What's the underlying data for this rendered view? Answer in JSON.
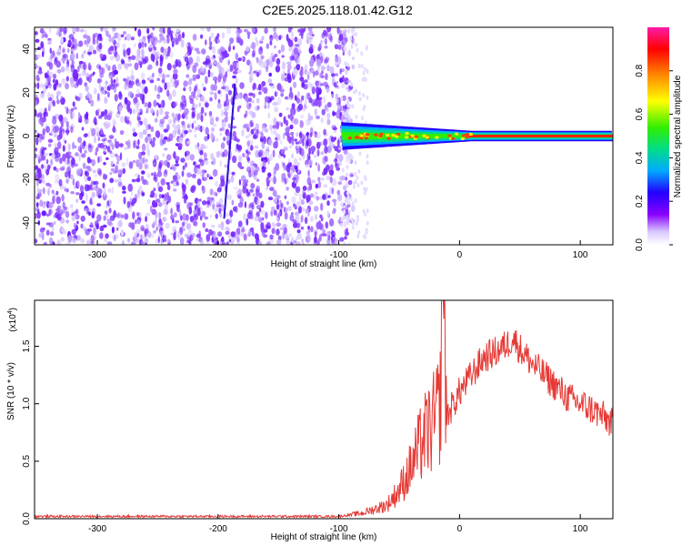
{
  "title": "C2E5.2025.118.01.42.G12",
  "colors": {
    "spectrogram_noise": "#6a1bff",
    "snr_line": "#e53935",
    "axis": "#000000",
    "colormap": [
      "#ff1aa8",
      "#ff0000",
      "#ff8800",
      "#ffff00",
      "#33ee00",
      "#00dd88",
      "#00aaff",
      "#2200ff",
      "#8800ff",
      "#d8c8ff",
      "#ffffff"
    ]
  },
  "chart_data": [
    {
      "type": "heatmap",
      "title": "C2E5.2025.118.01.42.G12",
      "xlabel": "Height of straight line (km)",
      "ylabel": "Frequency (Hz)",
      "xlim": [
        -352,
        127
      ],
      "ylim": [
        -50,
        50
      ],
      "xticks": [
        "-300",
        "-200",
        "-100",
        "0",
        "100"
      ],
      "yticks": [
        "-40",
        "-20",
        "0",
        "20",
        "40"
      ],
      "colorbar": {
        "label": "Normalized spectral amplitude",
        "range": [
          0.0,
          1.0
        ],
        "ticks": [
          "0.0",
          "0.2",
          "0.4",
          "0.6",
          "0.8"
        ]
      },
      "features": [
        {
          "description": "broadband noise",
          "x_range": [
            -352,
            -98
          ],
          "f_range": [
            -50,
            50
          ]
        },
        {
          "description": "signal trace",
          "x_range": [
            -98,
            127
          ],
          "f_center": 0,
          "f_halfwidth_start": 4,
          "f_halfwidth_end": 1.5
        }
      ]
    },
    {
      "type": "line",
      "xlabel": "Height of straight line (km)",
      "ylabel": "SNR (10 * v/v)",
      "yscale_label": "(x10",
      "yscale_exponent": "4",
      "xlim": [
        -352,
        127
      ],
      "ylim": [
        0,
        1.9
      ],
      "xticks": [
        "-300",
        "-200",
        "-100",
        "0",
        "100"
      ],
      "yticks": [
        "0.0",
        "0.5",
        "1.0",
        "1.5"
      ],
      "series": [
        {
          "x": [
            -352,
            -200,
            -100,
            -80,
            -60,
            -50,
            -40,
            -30,
            -20,
            -16,
            -14,
            -10,
            0,
            10,
            20,
            30,
            40,
            44,
            50,
            60,
            70,
            80,
            90,
            100,
            110,
            120,
            127
          ],
          "values": [
            0.02,
            0.02,
            0.02,
            0.05,
            0.12,
            0.25,
            0.45,
            0.7,
            0.85,
            1.0,
            1.9,
            0.9,
            1.1,
            1.25,
            1.4,
            1.45,
            1.52,
            1.58,
            1.48,
            1.35,
            1.25,
            1.15,
            1.05,
            1.0,
            0.95,
            0.88,
            0.82
          ]
        }
      ]
    }
  ]
}
